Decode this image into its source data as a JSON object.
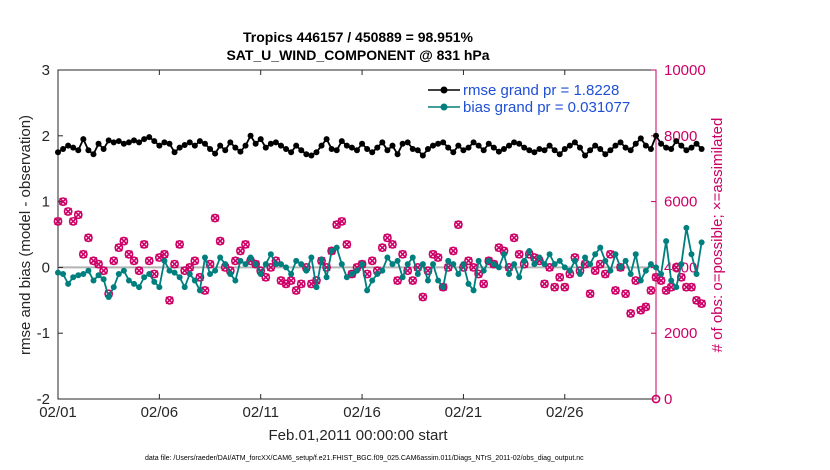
{
  "chart_data": {
    "type": "line",
    "title": "Tropics 446157 / 450889 = 98.951%",
    "subtitle": "SAT_U_WIND_COMPONENT @ 831 hPa",
    "xlabel": "Feb.01,2011 00:00:00 start",
    "ylabel": "rmse and bias (model - observation)",
    "y2label": "# of obs: o=possible; ×=assimilated",
    "xlim": [
      0,
      29.5
    ],
    "ylim": [
      -2,
      3
    ],
    "y2lim": [
      0,
      10000
    ],
    "x_ticks": [
      {
        "value": 0,
        "label": "02/01"
      },
      {
        "value": 5,
        "label": "02/06"
      },
      {
        "value": 10,
        "label": "02/11"
      },
      {
        "value": 15,
        "label": "02/16"
      },
      {
        "value": 20,
        "label": "02/21"
      },
      {
        "value": 25,
        "label": "02/26"
      }
    ],
    "y_ticks": [
      -2,
      -1,
      0,
      1,
      2,
      3
    ],
    "y2_ticks": [
      0,
      2000,
      4000,
      6000,
      8000,
      10000
    ],
    "x_step_days": 0.25,
    "series": [
      {
        "name": "rmse grand pr = 1.8228",
        "color": "#000000",
        "axis": "left",
        "values": [
          1.75,
          1.8,
          1.85,
          1.82,
          1.78,
          1.95,
          1.78,
          1.72,
          1.88,
          1.8,
          1.93,
          1.9,
          1.92,
          1.88,
          1.9,
          1.93,
          1.9,
          1.95,
          1.98,
          1.92,
          1.85,
          1.9,
          1.88,
          1.75,
          1.82,
          1.86,
          1.9,
          1.85,
          1.92,
          1.88,
          1.8,
          1.73,
          1.85,
          1.78,
          1.9,
          1.82,
          1.76,
          1.85,
          2.0,
          1.88,
          1.95,
          1.82,
          1.88,
          1.9,
          1.85,
          1.8,
          1.75,
          1.85,
          1.78,
          1.72,
          1.7,
          1.75,
          1.85,
          1.95,
          1.8,
          1.78,
          1.92,
          1.85,
          1.82,
          1.78,
          1.88,
          1.8,
          1.75,
          1.82,
          1.9,
          1.78,
          1.85,
          1.72,
          1.88,
          1.9,
          1.8,
          1.78,
          1.7,
          1.8,
          1.85,
          1.88,
          1.9,
          1.82,
          1.75,
          1.85,
          1.78,
          1.82,
          1.9,
          1.85,
          1.78,
          1.88,
          1.82,
          1.76,
          1.8,
          1.85,
          1.9,
          1.88,
          1.82,
          1.78,
          1.75,
          1.8,
          1.78,
          1.85,
          1.78,
          1.72,
          1.8,
          1.85,
          1.9,
          1.82,
          1.7,
          1.78,
          1.85,
          1.8,
          1.72,
          1.78,
          1.85,
          1.9,
          1.82,
          1.78,
          1.88,
          1.96,
          1.85,
          1.8,
          2.0,
          1.88,
          1.82,
          1.8,
          1.92,
          1.85,
          1.78,
          1.82,
          1.88,
          1.8
        ]
      },
      {
        "name": "bias grand pr = 0.031077",
        "color": "#007f7f",
        "axis": "left",
        "values": [
          -0.08,
          -0.1,
          -0.25,
          -0.15,
          -0.12,
          -0.1,
          -0.05,
          -0.2,
          -0.12,
          -0.18,
          -0.45,
          -0.3,
          -0.1,
          -0.05,
          -0.2,
          -0.25,
          -0.3,
          -0.15,
          -0.1,
          -0.22,
          -0.3,
          0.1,
          -0.05,
          -0.08,
          -0.15,
          -0.3,
          -0.1,
          -0.2,
          -0.35,
          0.15,
          -0.1,
          -0.05,
          0.15,
          0.05,
          -0.1,
          -0.2,
          0.1,
          0.05,
          0.15,
          0.05,
          -0.1,
          0.05,
          0.2,
          0.05,
          0.05,
          0.0,
          -0.1,
          0.1,
          0.05,
          -0.05,
          0.15,
          -0.3,
          0.12,
          -0.15,
          0.25,
          0.3,
          0.05,
          -0.15,
          -0.1,
          -0.05,
          0.05,
          -0.35,
          -0.2,
          -0.1,
          -0.05,
          0.15,
          0.05,
          0.1,
          -0.15,
          0.05,
          0.15,
          -0.1,
          0.05,
          -0.2,
          0.05,
          -0.2,
          -0.3,
          0.1,
          0.05,
          -0.1,
          0.05,
          -0.25,
          -0.35,
          0.1,
          -0.05,
          0.1,
          0.05,
          0.0,
          0.2,
          -0.1,
          0.05,
          -0.15,
          0.1,
          0.25,
          0.05,
          0.15,
          0.05,
          0.2,
          0.05,
          0.1,
          0.0,
          -0.05,
          0.1,
          -0.1,
          0.15,
          0.05,
          0.2,
          0.3,
          0.1,
          -0.05,
          0.2,
          0.0,
          0.1,
          -0.1,
          0.2,
          -0.2,
          -0.05,
          0.05,
          0.0,
          -0.1,
          0.4,
          -0.2,
          -0.3,
          0.05,
          0.6,
          0.2,
          -0.1,
          0.38
        ]
      },
      {
        "name": "obs possible",
        "color": "#cc0066",
        "axis": "right",
        "values": [
          5400,
          6000,
          5700,
          5400,
          5600,
          4400,
          4900,
          4200,
          4100,
          3900,
          3200,
          4200,
          4600,
          4800,
          4400,
          4200,
          3900,
          4700,
          4200,
          3800,
          4300,
          4400,
          3000,
          4100,
          4700,
          3900,
          4000,
          4200,
          3700,
          3300,
          4100,
          5500,
          4800,
          4000,
          3900,
          4200,
          4500,
          4700,
          4200,
          4100,
          3900,
          3700,
          4000,
          4200,
          3600,
          3500,
          3600,
          3300,
          3500,
          4000,
          3500,
          3600,
          4200,
          4000,
          4500,
          5300,
          5400,
          4700,
          3800,
          4000,
          4100,
          3800,
          4200,
          3900,
          4600,
          4900,
          4700,
          3600,
          4400,
          3900,
          3600,
          4000,
          3100,
          3900,
          4400,
          4300,
          3400,
          4000,
          4500,
          5300,
          4000,
          4200,
          4000,
          3800,
          3500,
          4200,
          4100,
          4600,
          4500,
          4000,
          4900,
          4400,
          4100,
          4400,
          4300,
          4200,
          3500,
          4000,
          3400,
          3700,
          3400,
          3800,
          4300,
          3900,
          4100,
          3200,
          3900,
          4100,
          3800,
          4400,
          3300,
          4000,
          3200,
          2600,
          3600,
          2700,
          2800,
          3300,
          3700,
          3600,
          3300,
          3400,
          4000,
          3700,
          3400,
          3400,
          3000,
          2900
        ]
      },
      {
        "name": "obs assimilated",
        "color": "#cc0066",
        "axis": "right",
        "values": [
          5400,
          6000,
          5700,
          5400,
          5600,
          4400,
          4900,
          4200,
          4100,
          3900,
          3200,
          4200,
          4600,
          4800,
          4400,
          4200,
          3900,
          4700,
          4200,
          3800,
          4300,
          4400,
          3000,
          4100,
          4700,
          3900,
          4000,
          4200,
          3700,
          3300,
          4100,
          5500,
          4800,
          4000,
          3900,
          4200,
          4500,
          4700,
          4200,
          4100,
          3900,
          3700,
          4000,
          4200,
          3600,
          3500,
          3600,
          3300,
          3500,
          4000,
          3500,
          3600,
          4200,
          4000,
          4500,
          5300,
          5400,
          4700,
          3800,
          4000,
          4100,
          3800,
          4200,
          3900,
          4600,
          4900,
          4700,
          3600,
          4400,
          3900,
          3600,
          4000,
          3100,
          3900,
          4400,
          4300,
          3400,
          4000,
          4500,
          5300,
          4000,
          4200,
          4000,
          3800,
          3500,
          4200,
          4100,
          4600,
          4500,
          4000,
          4900,
          4400,
          4100,
          4400,
          4300,
          4200,
          3500,
          4000,
          3400,
          3700,
          3400,
          3800,
          4300,
          3900,
          4100,
          3200,
          3900,
          4100,
          3800,
          4400,
          3300,
          4000,
          3200,
          2600,
          3600,
          2700,
          2800,
          3300,
          3700,
          3600,
          3300,
          3400,
          4000,
          3700,
          3400,
          3400,
          3000,
          2900
        ]
      }
    ],
    "legend": {
      "placement": "top-right",
      "entries": [
        "rmse grand pr = 1.8228",
        "bias grand pr = 0.031077"
      ]
    },
    "zero_line": true,
    "grid": false,
    "footnote": "data file: /Users/raeder/DAI/ATM_forcXX/CAM6_setup/f.e21.FHIST_BGC.f09_025.CAM6assim.011/Diags_NTrS_2011-02/obs_diag_output.nc"
  }
}
